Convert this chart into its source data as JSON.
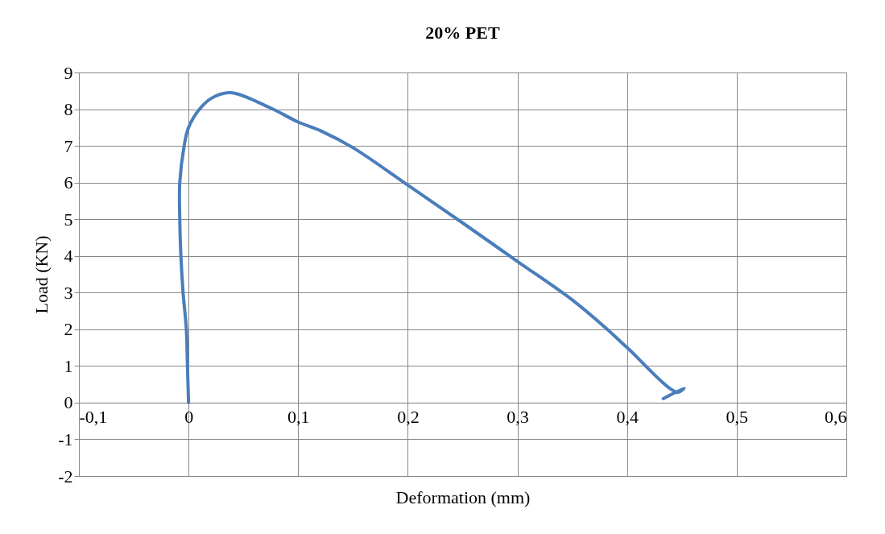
{
  "chart_data": {
    "type": "line",
    "title": "20% PET",
    "xlabel": "Deformation (mm)",
    "ylabel": "Load (KN)",
    "xlim": [
      -0.1,
      0.6
    ],
    "ylim": [
      -2,
      9
    ],
    "xticks": [
      {
        "value": -0.1,
        "label": "-0,1"
      },
      0,
      {
        "value": 0.1,
        "label": "0,1"
      },
      {
        "value": 0.2,
        "label": "0,2"
      },
      {
        "value": 0.3,
        "label": "0,3"
      },
      {
        "value": 0.4,
        "label": "0,4"
      },
      {
        "value": 0.5,
        "label": "0,5"
      },
      {
        "value": 0.6,
        "label": "0,6"
      }
    ],
    "yticks": [
      -2,
      -1,
      0,
      1,
      2,
      3,
      4,
      5,
      6,
      7,
      8,
      9
    ],
    "grid": true,
    "legend": false,
    "marker": "none",
    "line_style": "solid",
    "series": [
      {
        "color": "#4a7ebb",
        "x": [
          0,
          -0.001,
          -0.002,
          -0.005,
          -0.007,
          -0.008,
          -0.008,
          -0.004,
          0,
          0.01,
          0.021,
          0.038,
          0.0735,
          0.1,
          0.122,
          0.15,
          0.2,
          0.25,
          0.3,
          0.35,
          0.38,
          0.4,
          0.446,
          0.452,
          0.433
        ],
        "values": [
          0,
          1,
          2,
          3,
          4,
          5,
          6,
          7,
          7.5,
          8,
          8.3,
          8.45,
          8.05,
          7.65,
          7.39,
          6.95,
          5.93,
          4.9,
          3.85,
          2.8,
          2.05,
          1.5,
          0.28,
          0.4,
          0.11
        ]
      }
    ]
  }
}
